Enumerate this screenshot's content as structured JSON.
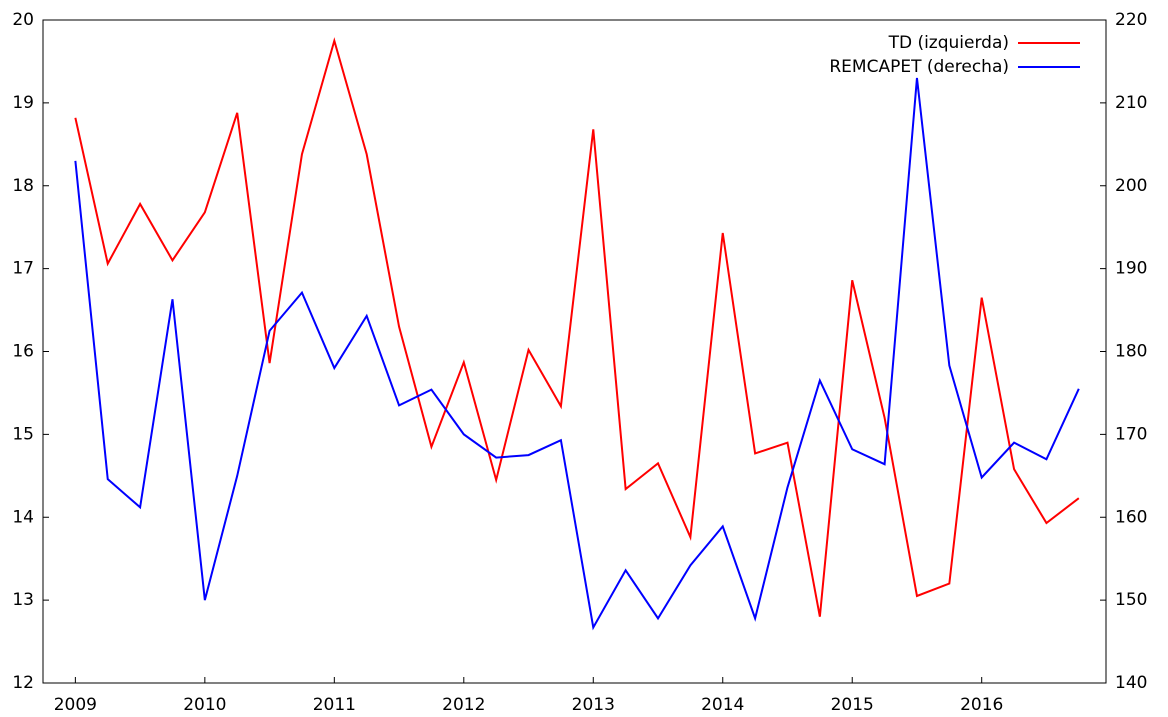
{
  "chart_data": {
    "type": "line",
    "x": [
      2009,
      2009.25,
      2009.5,
      2009.75,
      2010,
      2010.25,
      2010.5,
      2010.75,
      2011,
      2011.25,
      2011.5,
      2011.75,
      2012,
      2012.25,
      2012.5,
      2012.75,
      2013,
      2013.25,
      2013.5,
      2013.75,
      2014,
      2014.25,
      2014.5,
      2014.75,
      2015,
      2015.25,
      2015.5,
      2015.75,
      2016,
      2016.25,
      2016.5,
      2016.75
    ],
    "series": [
      {
        "name": "TD (izquierda)",
        "color": "#ff0000",
        "values": [
          18.82,
          17.06,
          17.78,
          17.1,
          17.68,
          18.88,
          15.86,
          18.38,
          19.75,
          18.38,
          16.3,
          14.85,
          15.87,
          14.45,
          16.02,
          15.34,
          18.68,
          14.34,
          14.65,
          13.76,
          17.43,
          14.77,
          14.9,
          12.8,
          16.86,
          15.2,
          13.05,
          13.2,
          16.65,
          14.58,
          13.93,
          14.23
        ]
      },
      {
        "name": "REMCAPET (derecha)",
        "color": "#0000ff",
        "axis": "y2",
        "values": [
          203,
          164.6,
          161.2,
          186.3,
          150,
          165,
          182.5,
          187.1,
          178,
          184.3,
          173.5,
          175.4,
          170,
          167.2,
          167.5,
          169.3,
          146.7,
          153.6,
          147.8,
          154.2,
          158.9,
          147.8,
          163.6,
          176.5,
          168.2,
          166.4,
          213,
          178.3,
          164.8,
          169,
          167,
          175.5
        ]
      }
    ],
    "xlim": [
      2008.75,
      2016.96
    ],
    "xticks": [
      2009,
      2010,
      2011,
      2012,
      2013,
      2014,
      2015,
      2016
    ],
    "ylim": [
      12,
      20
    ],
    "yticks": [
      12,
      13,
      14,
      15,
      16,
      17,
      18,
      19,
      20
    ],
    "y2lim": [
      140,
      220
    ],
    "y2ticks": [
      140,
      150,
      160,
      170,
      180,
      190,
      200,
      210,
      220
    ],
    "legend": "upper right",
    "grid": false
  }
}
